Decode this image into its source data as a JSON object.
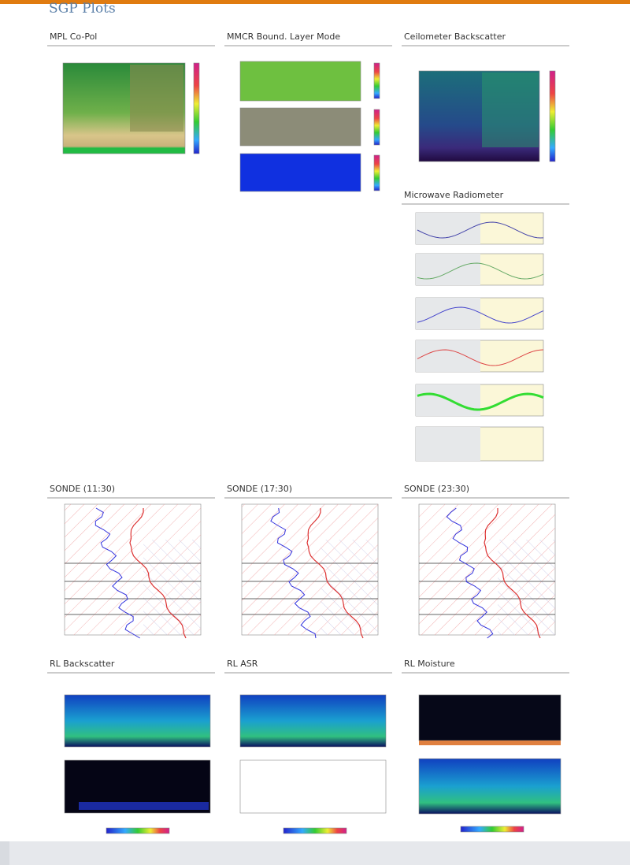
{
  "header": {
    "title": "SGP Plots"
  },
  "panels": [
    {
      "title": "MPL Co-Pol"
    },
    {
      "title": "MMCR Bound. Layer Mode"
    },
    {
      "title": "Ceilometer Backscatter"
    },
    {
      "title": "Microwave Radiometer"
    },
    {
      "title": "SONDE (11:30)"
    },
    {
      "title": "SONDE (17:30)"
    },
    {
      "title": "SONDE (23:30)"
    },
    {
      "title": "RL Backscatter"
    },
    {
      "title": "RL ASR"
    },
    {
      "title": "RL Moisture"
    }
  ]
}
